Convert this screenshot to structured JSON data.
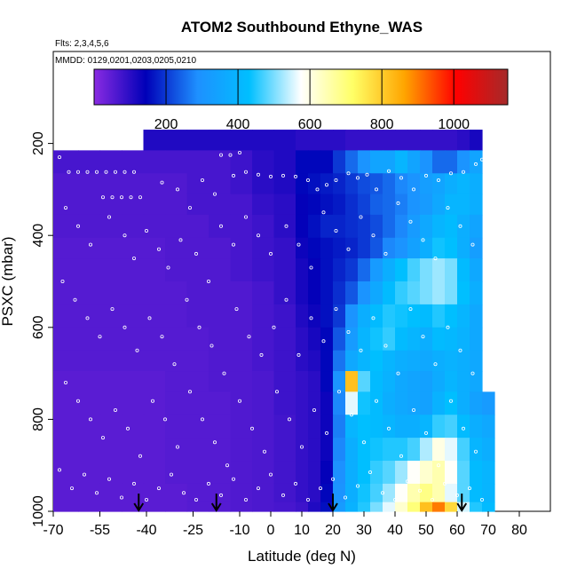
{
  "chart_data": {
    "type": "heatmap",
    "title": "ATOM2 Southbound Ethyne_WAS",
    "flights_note": "Flts: 2,3,4,5,6",
    "dates_note": "MMDD: 0129,0201,0203,0205,0210",
    "xlabel": "Latitude (deg N)",
    "ylabel": "PSXC (mbar)",
    "xlim": [
      -70,
      90
    ],
    "ylim": [
      1000,
      0
    ],
    "x_ticks": [
      -70,
      -55,
      -40,
      -25,
      -10,
      0,
      10,
      20,
      30,
      40,
      50,
      60,
      70,
      80
    ],
    "x_tick_labels": [
      "-70",
      "-55",
      "-40",
      "-25",
      "-10",
      "0",
      "10",
      "20",
      "30",
      "40",
      "50",
      "60",
      "70",
      "80"
    ],
    "y_ticks": [
      200,
      400,
      600,
      800,
      1000
    ],
    "y_tick_labels": [
      "200",
      "400",
      "600",
      "800",
      "1000"
    ],
    "colorbar": {
      "min": 0,
      "max": 1150,
      "ticks": [
        200,
        400,
        600,
        800,
        1000
      ],
      "tick_labels": [
        "200",
        "400",
        "600",
        "800",
        "1000"
      ],
      "colors": [
        "#8a2be2",
        "#0000b8",
        "#1e90ff",
        "#00bfff",
        "#ffffff",
        "#ffff66",
        "#ffa500",
        "#ff0000",
        "#a52a2a"
      ]
    },
    "grid": false,
    "legend": "colorbar-top",
    "latitude_edges": [
      -70,
      -62,
      -55,
      -48,
      -41,
      -34,
      -27,
      -20,
      -13,
      -6,
      1,
      8,
      12,
      16,
      20,
      24,
      28,
      32,
      36,
      40,
      44,
      48,
      52,
      56,
      60,
      64,
      68,
      72
    ],
    "pressure_edges": [
      170,
      215,
      265,
      310,
      355,
      405,
      450,
      500,
      550,
      600,
      650,
      695,
      740,
      790,
      840,
      890,
      940,
      980,
      1000
    ],
    "values": [
      [
        null,
        null,
        null,
        null,
        110,
        110,
        110,
        110,
        110,
        110,
        110,
        100,
        100,
        100,
        100,
        90,
        90,
        90,
        90,
        90,
        90,
        90,
        90,
        90,
        100,
        120,
        null
      ],
      [
        70,
        70,
        70,
        70,
        70,
        70,
        70,
        70,
        80,
        100,
        110,
        150,
        150,
        150,
        200,
        250,
        300,
        350,
        350,
        400,
        350,
        300,
        250,
        250,
        300,
        350,
        null
      ],
      [
        60,
        60,
        60,
        60,
        60,
        60,
        70,
        70,
        80,
        100,
        110,
        150,
        160,
        170,
        180,
        200,
        220,
        230,
        250,
        280,
        300,
        330,
        350,
        380,
        400,
        380,
        null
      ],
      [
        60,
        60,
        60,
        60,
        60,
        60,
        70,
        70,
        70,
        90,
        100,
        140,
        150,
        160,
        170,
        190,
        210,
        240,
        250,
        270,
        300,
        320,
        360,
        400,
        400,
        380,
        null
      ],
      [
        60,
        60,
        60,
        60,
        60,
        60,
        60,
        70,
        70,
        80,
        100,
        140,
        160,
        180,
        180,
        190,
        200,
        220,
        250,
        280,
        320,
        360,
        400,
        420,
        380,
        350,
        null
      ],
      [
        55,
        55,
        55,
        55,
        55,
        60,
        60,
        60,
        70,
        80,
        90,
        130,
        150,
        160,
        170,
        180,
        200,
        230,
        280,
        300,
        340,
        380,
        440,
        430,
        380,
        330,
        null
      ],
      [
        55,
        55,
        55,
        55,
        55,
        60,
        60,
        60,
        70,
        80,
        90,
        120,
        140,
        160,
        180,
        200,
        250,
        320,
        380,
        430,
        470,
        500,
        520,
        500,
        420,
        360,
        null
      ],
      [
        55,
        55,
        55,
        55,
        55,
        55,
        60,
        60,
        60,
        70,
        90,
        120,
        140,
        160,
        190,
        230,
        300,
        360,
        420,
        460,
        480,
        500,
        520,
        500,
        430,
        380,
        null
      ],
      [
        55,
        55,
        55,
        55,
        55,
        55,
        60,
        60,
        60,
        70,
        80,
        110,
        130,
        160,
        200,
        300,
        380,
        420,
        450,
        440,
        430,
        420,
        450,
        430,
        400,
        360,
        null
      ],
      [
        55,
        55,
        55,
        55,
        55,
        55,
        55,
        60,
        60,
        70,
        80,
        100,
        120,
        150,
        230,
        320,
        400,
        440,
        460,
        420,
        400,
        380,
        420,
        410,
        390,
        360,
        null
      ],
      [
        55,
        55,
        55,
        55,
        55,
        55,
        55,
        60,
        60,
        70,
        80,
        100,
        110,
        150,
        260,
        360,
        400,
        430,
        400,
        380,
        370,
        360,
        380,
        390,
        380,
        360,
        null
      ],
      [
        50,
        50,
        50,
        50,
        50,
        55,
        55,
        60,
        60,
        65,
        80,
        90,
        100,
        150,
        300,
        820,
        480,
        420,
        390,
        360,
        350,
        340,
        370,
        400,
        380,
        360,
        null
      ],
      [
        50,
        50,
        50,
        50,
        50,
        55,
        55,
        55,
        60,
        65,
        80,
        90,
        100,
        130,
        280,
        560,
        440,
        420,
        380,
        360,
        350,
        340,
        390,
        430,
        380,
        340,
        320
      ],
      [
        50,
        50,
        50,
        50,
        50,
        55,
        55,
        55,
        60,
        65,
        75,
        90,
        100,
        130,
        270,
        400,
        430,
        420,
        400,
        380,
        380,
        400,
        460,
        470,
        420,
        380,
        360
      ],
      [
        50,
        50,
        50,
        50,
        50,
        55,
        55,
        55,
        60,
        65,
        75,
        90,
        100,
        130,
        280,
        380,
        430,
        440,
        450,
        450,
        470,
        530,
        600,
        560,
        470,
        400,
        380
      ],
      [
        50,
        50,
        50,
        50,
        50,
        55,
        55,
        55,
        60,
        65,
        75,
        90,
        100,
        140,
        290,
        380,
        430,
        460,
        480,
        520,
        580,
        620,
        650,
        580,
        480,
        420,
        400
      ],
      [
        50,
        50,
        50,
        50,
        50,
        50,
        55,
        55,
        60,
        65,
        75,
        90,
        100,
        150,
        300,
        380,
        440,
        470,
        520,
        580,
        650,
        690,
        650,
        560,
        480,
        420,
        400
      ],
      [
        50,
        50,
        50,
        50,
        50,
        50,
        55,
        55,
        60,
        65,
        70,
        80,
        110,
        160,
        320,
        390,
        450,
        500,
        560,
        620,
        700,
        820,
        900,
        780,
        550,
        450,
        420
      ],
      [
        50,
        50,
        50,
        50,
        50,
        50,
        55,
        55,
        60,
        65,
        70,
        80,
        100,
        150,
        300,
        380,
        440,
        480,
        540,
        600,
        690,
        820,
        920,
        760,
        520,
        430,
        400
      ]
    ],
    "sample_points": [
      [
        -68,
        230
      ],
      [
        -65,
        262
      ],
      [
        -62,
        262
      ],
      [
        -59,
        262
      ],
      [
        -56,
        262
      ],
      [
        -53,
        262
      ],
      [
        -50,
        262
      ],
      [
        -47,
        262
      ],
      [
        -44,
        262
      ],
      [
        -54,
        317
      ],
      [
        -51,
        317
      ],
      [
        -48,
        317
      ],
      [
        -45,
        317
      ],
      [
        -42,
        317
      ],
      [
        -54,
        205
      ],
      [
        -50,
        205
      ],
      [
        -46,
        205
      ],
      [
        -42,
        205
      ],
      [
        -16,
        225
      ],
      [
        -13,
        225
      ],
      [
        -10,
        220
      ],
      [
        -35,
        285
      ],
      [
        -30,
        300
      ],
      [
        -26,
        340
      ],
      [
        -22,
        280
      ],
      [
        -18,
        310
      ],
      [
        -12,
        270
      ],
      [
        -8,
        262
      ],
      [
        -4,
        268
      ],
      [
        0,
        272
      ],
      [
        4,
        270
      ],
      [
        8,
        272
      ],
      [
        12,
        280
      ],
      [
        15,
        300
      ],
      [
        18,
        290
      ],
      [
        21,
        280
      ],
      [
        25,
        265
      ],
      [
        28,
        275
      ],
      [
        31,
        268
      ],
      [
        34,
        300
      ],
      [
        38,
        260
      ],
      [
        42,
        275
      ],
      [
        46,
        300
      ],
      [
        50,
        270
      ],
      [
        54,
        280
      ],
      [
        58,
        265
      ],
      [
        62,
        262
      ],
      [
        66,
        245
      ],
      [
        68,
        235
      ],
      [
        -66,
        340
      ],
      [
        -62,
        380
      ],
      [
        -58,
        420
      ],
      [
        -52,
        360
      ],
      [
        -47,
        400
      ],
      [
        -44,
        450
      ],
      [
        -40,
        390
      ],
      [
        -36,
        430
      ],
      [
        -33,
        470
      ],
      [
        -29,
        410
      ],
      [
        -24,
        440
      ],
      [
        -20,
        500
      ],
      [
        -16,
        380
      ],
      [
        -12,
        420
      ],
      [
        -8,
        360
      ],
      [
        -4,
        400
      ],
      [
        0,
        440
      ],
      [
        5,
        380
      ],
      [
        9,
        420
      ],
      [
        13,
        470
      ],
      [
        17,
        350
      ],
      [
        21,
        390
      ],
      [
        25,
        430
      ],
      [
        29,
        360
      ],
      [
        33,
        400
      ],
      [
        37,
        440
      ],
      [
        41,
        330
      ],
      [
        45,
        370
      ],
      [
        49,
        410
      ],
      [
        53,
        450
      ],
      [
        57,
        340
      ],
      [
        61,
        380
      ],
      [
        65,
        420
      ],
      [
        -67,
        500
      ],
      [
        -63,
        540
      ],
      [
        -59,
        580
      ],
      [
        -55,
        620
      ],
      [
        -51,
        560
      ],
      [
        -47,
        600
      ],
      [
        -43,
        650
      ],
      [
        -39,
        580
      ],
      [
        -35,
        620
      ],
      [
        -31,
        680
      ],
      [
        -27,
        540
      ],
      [
        -23,
        600
      ],
      [
        -19,
        640
      ],
      [
        -15,
        700
      ],
      [
        -11,
        560
      ],
      [
        -7,
        620
      ],
      [
        -3,
        660
      ],
      [
        1,
        600
      ],
      [
        5,
        540
      ],
      [
        9,
        660
      ],
      [
        13,
        580
      ],
      [
        17,
        630
      ],
      [
        21,
        560
      ],
      [
        25,
        610
      ],
      [
        29,
        650
      ],
      [
        33,
        580
      ],
      [
        37,
        640
      ],
      [
        41,
        700
      ],
      [
        45,
        560
      ],
      [
        49,
        620
      ],
      [
        53,
        680
      ],
      [
        57,
        600
      ],
      [
        61,
        650
      ],
      [
        65,
        700
      ],
      [
        -66,
        720
      ],
      [
        -62,
        760
      ],
      [
        -58,
        800
      ],
      [
        -54,
        840
      ],
      [
        -50,
        780
      ],
      [
        -46,
        820
      ],
      [
        -42,
        880
      ],
      [
        -38,
        760
      ],
      [
        -34,
        800
      ],
      [
        -30,
        860
      ],
      [
        -26,
        740
      ],
      [
        -22,
        800
      ],
      [
        -18,
        850
      ],
      [
        -14,
        900
      ],
      [
        -10,
        760
      ],
      [
        -6,
        820
      ],
      [
        -2,
        870
      ],
      [
        2,
        740
      ],
      [
        6,
        800
      ],
      [
        10,
        860
      ],
      [
        14,
        780
      ],
      [
        18,
        830
      ],
      [
        22,
        740
      ],
      [
        26,
        790
      ],
      [
        30,
        850
      ],
      [
        34,
        760
      ],
      [
        38,
        820
      ],
      [
        42,
        880
      ],
      [
        46,
        780
      ],
      [
        50,
        830
      ],
      [
        54,
        900
      ],
      [
        58,
        760
      ],
      [
        62,
        820
      ],
      [
        66,
        870
      ],
      [
        -68,
        910
      ],
      [
        -64,
        950
      ],
      [
        -60,
        920
      ],
      [
        -56,
        960
      ],
      [
        -52,
        930
      ],
      [
        -48,
        970
      ],
      [
        -44,
        940
      ],
      [
        -40,
        975
      ],
      [
        -36,
        950
      ],
      [
        -32,
        920
      ],
      [
        -28,
        960
      ],
      [
        -24,
        975
      ],
      [
        -20,
        940
      ],
      [
        -16,
        965
      ],
      [
        -12,
        930
      ],
      [
        -8,
        975
      ],
      [
        -4,
        950
      ],
      [
        0,
        920
      ],
      [
        4,
        965
      ],
      [
        8,
        940
      ],
      [
        12,
        975
      ],
      [
        16,
        950
      ],
      [
        20,
        930
      ],
      [
        24,
        970
      ],
      [
        28,
        945
      ],
      [
        32,
        915
      ],
      [
        36,
        960
      ],
      [
        40,
        975
      ],
      [
        44,
        935
      ],
      [
        48,
        955
      ],
      [
        52,
        975
      ],
      [
        56,
        940
      ],
      [
        60,
        965
      ],
      [
        64,
        950
      ],
      [
        68,
        975
      ]
    ],
    "arrows": [
      -42.5,
      -17.5,
      20,
      61.5
    ]
  }
}
